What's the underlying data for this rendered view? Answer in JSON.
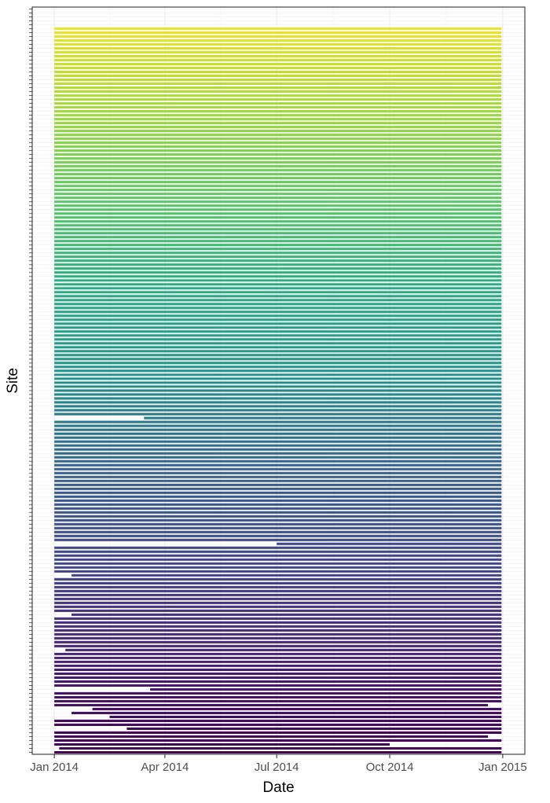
{
  "chart_data": {
    "type": "timeline",
    "title": "",
    "xlabel": "Date",
    "ylabel": "Site",
    "x_ticks": [
      "Jan 2014",
      "Apr 2014",
      "Jul 2014",
      "Oct 2014",
      "Jan 2015"
    ],
    "x_tick_dates": [
      "2014-01-01",
      "2014-04-01",
      "2014-07-01",
      "2014-10-01",
      "2015-01-01"
    ],
    "xlim": [
      "2013-12-14",
      "2015-01-19"
    ],
    "y_tick_labels_shown": false,
    "site_count": 190,
    "color_scale": "viridis",
    "colors": {
      "low": "#440154",
      "mid": "#21908d",
      "high": "#fde725"
    },
    "grid": true,
    "legend": "none",
    "site_ranges": [
      [
        "2014-01-01",
        "2014-12-31"
      ],
      [
        "2014-01-05",
        "2014-12-31"
      ],
      [
        "2014-01-01",
        "2014-10-01"
      ],
      [
        "2014-01-01",
        "2014-12-31"
      ],
      [
        "2014-01-01",
        "2014-12-20"
      ],
      [
        "2014-01-01",
        "2014-12-31"
      ],
      [
        "2014-03-01",
        "2014-12-31"
      ],
      [
        "2014-01-01",
        "2014-12-31"
      ],
      [
        "2014-01-01",
        "2014-12-31"
      ],
      [
        "2014-02-15",
        "2014-12-31"
      ],
      [
        "2014-01-15",
        "2014-12-31"
      ],
      [
        "2014-02-01",
        "2014-12-31"
      ],
      [
        "2014-01-01",
        "2014-12-20"
      ],
      [
        "2014-01-01",
        "2014-12-31"
      ],
      [
        "2014-01-01",
        "2014-12-31"
      ],
      [
        "2014-01-01",
        "2014-12-31"
      ],
      [
        "2014-03-20",
        "2014-12-31"
      ],
      [
        "2014-01-01",
        "2014-12-31"
      ],
      [
        "2014-01-01",
        "2014-12-31"
      ],
      [
        "2014-01-01",
        "2014-12-31"
      ],
      [
        "2014-01-01",
        "2014-12-31"
      ],
      [
        "2014-01-01",
        "2014-12-31"
      ],
      [
        "2014-01-01",
        "2014-12-31"
      ],
      [
        "2014-01-01",
        "2014-12-31"
      ],
      [
        "2014-01-01",
        "2014-12-31"
      ],
      [
        "2014-01-01",
        "2014-12-31"
      ],
      [
        "2014-01-10",
        "2014-12-31"
      ],
      [
        "2014-01-01",
        "2014-12-31"
      ],
      [
        "2014-01-01",
        "2014-12-31"
      ],
      [
        "2014-01-01",
        "2014-12-31"
      ],
      [
        "2014-01-01",
        "2014-12-31"
      ],
      [
        "2014-01-01",
        "2014-12-31"
      ],
      [
        "2014-01-01",
        "2014-12-31"
      ],
      [
        "2014-01-01",
        "2014-12-31"
      ],
      [
        "2014-01-01",
        "2014-12-31"
      ],
      [
        "2014-01-15",
        "2014-12-31"
      ],
      [
        "2014-01-01",
        "2014-12-31"
      ],
      [
        "2014-01-01",
        "2014-12-31"
      ],
      [
        "2014-01-01",
        "2014-12-31"
      ],
      [
        "2014-01-01",
        "2014-12-31"
      ],
      [
        "2014-01-01",
        "2014-12-31"
      ],
      [
        "2014-01-01",
        "2014-12-31"
      ],
      [
        "2014-01-01",
        "2014-12-31"
      ],
      [
        "2014-01-01",
        "2014-12-31"
      ],
      [
        "2014-01-01",
        "2014-12-31"
      ],
      [
        "2014-01-15",
        "2014-12-31"
      ],
      [
        "2014-01-01",
        "2014-12-31"
      ],
      [
        "2014-01-01",
        "2014-12-31"
      ],
      [
        "2014-01-01",
        "2014-12-31"
      ],
      [
        "2014-01-01",
        "2014-12-31"
      ],
      [
        "2014-01-01",
        "2014-12-31"
      ],
      [
        "2014-01-01",
        "2014-12-31"
      ],
      [
        "2014-01-01",
        "2014-12-31"
      ],
      [
        "2014-07-01",
        "2014-12-31"
      ],
      [
        "2014-01-01",
        "2014-12-31"
      ],
      [
        "2014-01-01",
        "2014-12-31"
      ],
      [
        "2014-01-01",
        "2014-12-31"
      ],
      [
        "2014-01-01",
        "2014-12-31"
      ],
      [
        "2014-01-01",
        "2014-12-31"
      ],
      [
        "2014-01-01",
        "2014-12-31"
      ],
      [
        "2014-01-01",
        "2014-12-31"
      ],
      [
        "2014-01-01",
        "2014-12-31"
      ],
      [
        "2014-01-01",
        "2014-12-31"
      ],
      [
        "2014-01-01",
        "2014-12-31"
      ],
      [
        "2014-01-01",
        "2014-12-31"
      ],
      [
        "2014-01-01",
        "2014-12-31"
      ],
      [
        "2014-01-01",
        "2014-12-31"
      ],
      [
        "2014-01-01",
        "2014-12-31"
      ],
      [
        "2014-01-01",
        "2014-12-31"
      ],
      [
        "2014-01-01",
        "2014-12-31"
      ],
      [
        "2014-01-01",
        "2014-12-31"
      ],
      [
        "2014-01-01",
        "2014-12-31"
      ],
      [
        "2014-01-01",
        "2014-12-31"
      ],
      [
        "2014-01-01",
        "2014-12-31"
      ],
      [
        "2014-01-01",
        "2014-12-31"
      ],
      [
        "2014-01-01",
        "2014-12-31"
      ],
      [
        "2014-01-01",
        "2014-12-31"
      ],
      [
        "2014-01-01",
        "2014-12-31"
      ],
      [
        "2014-01-01",
        "2014-12-31"
      ],
      [
        "2014-01-01",
        "2014-12-31"
      ],
      [
        "2014-01-01",
        "2014-12-31"
      ],
      [
        "2014-01-01",
        "2014-12-31"
      ],
      [
        "2014-01-01",
        "2014-12-31"
      ],
      [
        "2014-01-01",
        "2014-12-31"
      ],
      [
        "2014-01-01",
        "2014-12-31"
      ],
      [
        "2014-03-15",
        "2014-12-31"
      ],
      [
        "2014-01-01",
        "2014-12-31"
      ],
      [
        "2014-01-01",
        "2014-12-31"
      ],
      [
        "2014-01-01",
        "2014-12-31"
      ],
      [
        "2014-01-01",
        "2014-12-31"
      ],
      [
        "2014-01-01",
        "2014-12-31"
      ],
      [
        "2014-01-01",
        "2014-12-31"
      ],
      [
        "2014-01-01",
        "2014-12-31"
      ],
      [
        "2014-01-01",
        "2014-12-31"
      ],
      [
        "2014-01-01",
        "2014-12-31"
      ],
      [
        "2014-01-01",
        "2014-12-31"
      ],
      [
        "2014-01-01",
        "2014-12-31"
      ],
      [
        "2014-01-01",
        "2014-12-31"
      ],
      [
        "2014-01-01",
        "2014-12-31"
      ],
      [
        "2014-01-01",
        "2014-12-31"
      ],
      [
        "2014-01-01",
        "2014-12-31"
      ],
      [
        "2014-01-01",
        "2014-12-31"
      ],
      [
        "2014-01-01",
        "2014-12-31"
      ],
      [
        "2014-01-01",
        "2014-12-31"
      ],
      [
        "2014-01-01",
        "2014-12-31"
      ],
      [
        "2014-01-01",
        "2014-12-31"
      ],
      [
        "2014-01-01",
        "2014-12-31"
      ],
      [
        "2014-01-01",
        "2014-12-31"
      ],
      [
        "2014-01-01",
        "2014-12-31"
      ],
      [
        "2014-01-01",
        "2014-12-31"
      ],
      [
        "2014-01-01",
        "2014-12-31"
      ],
      [
        "2014-01-01",
        "2014-12-31"
      ],
      [
        "2014-01-01",
        "2014-12-31"
      ],
      [
        "2014-01-01",
        "2014-12-31"
      ],
      [
        "2014-01-01",
        "2014-12-31"
      ],
      [
        "2014-01-01",
        "2014-12-31"
      ],
      [
        "2014-01-01",
        "2014-12-31"
      ],
      [
        "2014-01-01",
        "2014-12-31"
      ],
      [
        "2014-01-01",
        "2014-12-31"
      ],
      [
        "2014-01-01",
        "2014-12-31"
      ],
      [
        "2014-01-01",
        "2014-12-31"
      ],
      [
        "2014-01-01",
        "2014-12-31"
      ],
      [
        "2014-01-01",
        "2014-12-31"
      ],
      [
        "2014-01-01",
        "2014-12-31"
      ],
      [
        "2014-01-01",
        "2014-12-31"
      ],
      [
        "2014-01-01",
        "2014-12-31"
      ],
      [
        "2014-01-01",
        "2014-12-31"
      ],
      [
        "2014-01-01",
        "2014-12-31"
      ],
      [
        "2014-01-01",
        "2014-12-31"
      ],
      [
        "2014-01-01",
        "2014-12-31"
      ],
      [
        "2014-01-01",
        "2014-12-31"
      ],
      [
        "2014-01-01",
        "2014-12-31"
      ],
      [
        "2014-01-01",
        "2014-12-31"
      ],
      [
        "2014-01-01",
        "2014-12-31"
      ],
      [
        "2014-01-01",
        "2014-12-31"
      ],
      [
        "2014-01-01",
        "2014-12-31"
      ],
      [
        "2014-01-01",
        "2014-12-31"
      ],
      [
        "2014-01-01",
        "2014-12-31"
      ],
      [
        "2014-01-01",
        "2014-12-31"
      ],
      [
        "2014-01-01",
        "2014-12-31"
      ],
      [
        "2014-01-01",
        "2014-12-31"
      ],
      [
        "2014-01-01",
        "2014-12-31"
      ],
      [
        "2014-01-01",
        "2014-12-31"
      ],
      [
        "2014-01-01",
        "2014-12-31"
      ],
      [
        "2014-01-01",
        "2014-12-31"
      ],
      [
        "2014-01-01",
        "2014-12-31"
      ],
      [
        "2014-01-01",
        "2014-12-31"
      ],
      [
        "2014-01-01",
        "2014-12-31"
      ],
      [
        "2014-01-01",
        "2014-12-31"
      ],
      [
        "2014-01-01",
        "2014-12-31"
      ],
      [
        "2014-01-01",
        "2014-12-31"
      ],
      [
        "2014-01-01",
        "2014-12-31"
      ],
      [
        "2014-01-01",
        "2014-12-31"
      ],
      [
        "2014-01-01",
        "2014-12-31"
      ],
      [
        "2014-01-01",
        "2014-12-31"
      ],
      [
        "2014-01-01",
        "2014-12-31"
      ],
      [
        "2014-01-01",
        "2014-12-31"
      ],
      [
        "2014-01-01",
        "2014-12-31"
      ],
      [
        "2014-01-01",
        "2014-12-31"
      ],
      [
        "2014-01-01",
        "2014-12-31"
      ],
      [
        "2014-01-01",
        "2014-12-31"
      ],
      [
        "2014-01-01",
        "2014-12-31"
      ],
      [
        "2014-01-01",
        "2014-12-31"
      ],
      [
        "2014-01-01",
        "2014-12-31"
      ],
      [
        "2014-01-01",
        "2014-12-31"
      ],
      [
        "2014-01-01",
        "2014-12-31"
      ],
      [
        "2014-01-01",
        "2014-12-31"
      ],
      [
        "2014-01-01",
        "2014-12-31"
      ],
      [
        "2014-01-01",
        "2014-12-31"
      ],
      [
        "2014-01-01",
        "2014-12-31"
      ],
      [
        "2014-01-01",
        "2014-12-31"
      ],
      [
        "2014-01-01",
        "2014-12-31"
      ],
      [
        "2014-01-01",
        "2014-12-31"
      ],
      [
        "2014-01-01",
        "2014-12-31"
      ],
      [
        "2014-01-01",
        "2014-12-31"
      ],
      [
        "2014-01-01",
        "2014-12-31"
      ],
      [
        "2014-01-01",
        "2014-12-31"
      ],
      [
        "2014-01-01",
        "2014-12-31"
      ],
      [
        "2014-01-01",
        "2014-12-31"
      ],
      [
        "2014-01-01",
        "2014-12-31"
      ],
      [
        "2014-01-01",
        "2014-12-31"
      ],
      [
        "2014-01-01",
        "2014-12-31"
      ],
      [
        "2014-01-01",
        "2014-12-31"
      ],
      [
        "2014-01-01",
        "2014-12-31"
      ],
      [
        "2014-01-01",
        "2014-12-31"
      ]
    ]
  }
}
